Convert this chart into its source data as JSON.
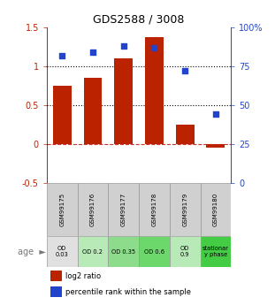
{
  "title": "GDS2588 / 3008",
  "samples": [
    "GSM99175",
    "GSM99176",
    "GSM99177",
    "GSM99178",
    "GSM99179",
    "GSM99180"
  ],
  "log2_ratio": [
    0.75,
    0.85,
    1.1,
    1.38,
    0.25,
    -0.05
  ],
  "percentile_rank": [
    82,
    84,
    88,
    87,
    72,
    44
  ],
  "bar_color": "#bb2200",
  "dot_color": "#2244cc",
  "ylim_left": [
    -0.5,
    1.5
  ],
  "ylim_right": [
    0,
    100
  ],
  "yticks_left": [
    -0.5,
    0,
    0.5,
    1.0,
    1.5
  ],
  "ytick_labels_left": [
    "-0.5",
    "0",
    "0.5",
    "1",
    "1.5"
  ],
  "yticks_right": [
    0,
    25,
    50,
    75,
    100
  ],
  "ytick_labels_right": [
    "0",
    "25",
    "50",
    "75",
    "100%"
  ],
  "hlines": [
    0.5,
    1.0
  ],
  "age_labels": [
    "OD\n0.03",
    "OD 0.2",
    "OD 0.35",
    "OD 0.6",
    "OD\n0.9",
    "stationar\ny phase"
  ],
  "age_bg_colors": [
    "#e0e0e0",
    "#b8eab8",
    "#8cdc8c",
    "#6cd86c",
    "#b8eab8",
    "#44cc44"
  ],
  "sample_bg_color": "#d0d0d0",
  "label_log2": "log2 ratio",
  "label_pct": "percentile rank within the sample",
  "zero_line_color": "#cc3333",
  "hline_color": "black",
  "bg_color": "white"
}
